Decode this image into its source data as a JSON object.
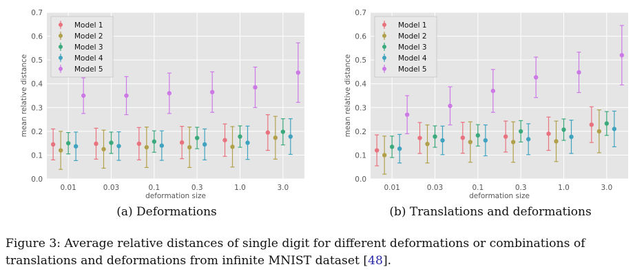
{
  "figure": {
    "label": "Figure 3:",
    "caption_text": " Average relative distances of single digit for different deformations or combinations of translations and deformations from infinite MNIST dataset [",
    "citation": "48",
    "caption_end": "]."
  },
  "chart_data": [
    {
      "type": "errorbar",
      "subcaption": "(a) Deformations",
      "xlabel": "deformation size",
      "ylabel": "mean relative distance",
      "ylim": [
        0,
        0.7
      ],
      "yticks": [
        "0.0",
        "0.1",
        "0.2",
        "0.3",
        "0.4",
        "0.5",
        "0.6",
        "0.7"
      ],
      "categories": [
        "0.01",
        "0.03",
        "0.1",
        "0.3",
        "1.0",
        "3.0"
      ],
      "grid": true,
      "legend": "top-left",
      "series": [
        {
          "name": "Model 1",
          "color": "#e8727e",
          "values": [
            0.145,
            0.148,
            0.148,
            0.153,
            0.163,
            0.195
          ],
          "errors": [
            0.065,
            0.065,
            0.068,
            0.068,
            0.068,
            0.075
          ]
        },
        {
          "name": "Model 2",
          "color": "#b1a04a",
          "values": [
            0.12,
            0.125,
            0.133,
            0.133,
            0.135,
            0.173
          ],
          "errors": [
            0.08,
            0.08,
            0.085,
            0.085,
            0.085,
            0.09
          ]
        },
        {
          "name": "Model 3",
          "color": "#3aaa7c",
          "values": [
            0.15,
            0.152,
            0.157,
            0.172,
            0.178,
            0.198
          ],
          "errors": [
            0.045,
            0.045,
            0.045,
            0.045,
            0.045,
            0.055
          ]
        },
        {
          "name": "Model 4",
          "color": "#3fa3bf",
          "values": [
            0.137,
            0.138,
            0.14,
            0.145,
            0.152,
            0.178
          ],
          "errors": [
            0.06,
            0.06,
            0.062,
            0.065,
            0.07,
            0.075
          ]
        },
        {
          "name": "Model 5",
          "color": "#cc79e6",
          "values": [
            0.35,
            0.35,
            0.36,
            0.365,
            0.385,
            0.447
          ],
          "errors": [
            0.075,
            0.08,
            0.085,
            0.085,
            0.085,
            0.125
          ]
        }
      ]
    },
    {
      "type": "errorbar",
      "subcaption": "(b) Translations and deformations",
      "xlabel": "deformation size",
      "ylabel": "mean relative distance",
      "ylim": [
        0,
        0.7
      ],
      "yticks": [
        "0.0",
        "0.1",
        "0.2",
        "0.3",
        "0.4",
        "0.5",
        "0.6",
        "0.7"
      ],
      "categories": [
        "0.01",
        "0.03",
        "0.1",
        "0.3",
        "1.0",
        "3.0"
      ],
      "grid": true,
      "legend": "top-left",
      "series": [
        {
          "name": "Model 1",
          "color": "#e8727e",
          "values": [
            0.12,
            0.172,
            0.173,
            0.178,
            0.19,
            0.228
          ],
          "errors": [
            0.065,
            0.065,
            0.065,
            0.065,
            0.07,
            0.075
          ]
        },
        {
          "name": "Model 2",
          "color": "#b1a04a",
          "values": [
            0.1,
            0.147,
            0.155,
            0.155,
            0.158,
            0.2
          ],
          "errors": [
            0.08,
            0.08,
            0.085,
            0.085,
            0.085,
            0.09
          ]
        },
        {
          "name": "Model 3",
          "color": "#3aaa7c",
          "values": [
            0.135,
            0.178,
            0.183,
            0.2,
            0.207,
            0.233
          ],
          "errors": [
            0.045,
            0.045,
            0.045,
            0.045,
            0.045,
            0.05
          ]
        },
        {
          "name": "Model 4",
          "color": "#3fa3bf",
          "values": [
            0.127,
            0.162,
            0.162,
            0.167,
            0.177,
            0.21
          ],
          "errors": [
            0.06,
            0.06,
            0.065,
            0.065,
            0.07,
            0.075
          ]
        },
        {
          "name": "Model 5",
          "color": "#cc79e6",
          "values": [
            0.27,
            0.307,
            0.37,
            0.427,
            0.448,
            0.52
          ],
          "errors": [
            0.08,
            0.08,
            0.09,
            0.085,
            0.085,
            0.125
          ]
        }
      ]
    }
  ]
}
